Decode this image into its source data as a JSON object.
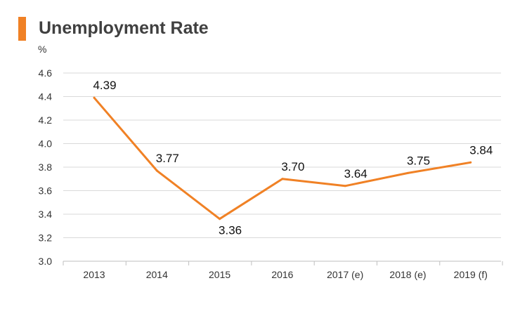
{
  "chart_data": {
    "type": "line",
    "title": "Unemployment Rate",
    "ylabel": "%",
    "xlabel": "",
    "categories": [
      "2013",
      "2014",
      "2015",
      "2016",
      "2017 (e)",
      "2018 (e)",
      "2019 (f)"
    ],
    "series": [
      {
        "values": [
          4.39,
          3.77,
          3.36,
          3.7,
          3.64,
          3.75,
          3.84
        ]
      }
    ],
    "data_labels": [
      "4.39",
      "3.77",
      "3.36",
      "3.70",
      "3.64",
      "3.75",
      "3.84"
    ],
    "yticks": [
      "3.0",
      "3.2",
      "3.4",
      "3.6",
      "3.8",
      "4.0",
      "4.2",
      "4.4",
      "4.6"
    ],
    "ylim": [
      3.0,
      4.6
    ],
    "grid": true,
    "legend": "none",
    "colors": {
      "accent": "#f08125",
      "line": "#f08125",
      "grid": "#d9d9d9",
      "axis": "#bfbfbf",
      "title": "#404040"
    }
  }
}
